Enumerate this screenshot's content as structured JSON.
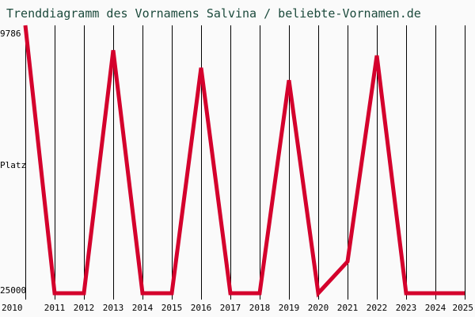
{
  "chart_data": {
    "type": "line",
    "title": "Trenddiagramm des Vornamens Salvina / beliebte-Vornamen.de",
    "ylabel": "Platz",
    "x": [
      "2010",
      "2011",
      "2012",
      "2013",
      "2014",
      "2015",
      "2016",
      "2017",
      "2018",
      "2019",
      "2020",
      "2021",
      "2022",
      "2023",
      "2024",
      "2025"
    ],
    "series": [
      {
        "values": [
          9786,
          25000,
          25000,
          11200,
          25000,
          25000,
          12200,
          25000,
          25000,
          12900,
          25000,
          23200,
          11500,
          25000,
          25000,
          25000
        ]
      }
    ],
    "y_ticks": [
      "9786",
      "Platz",
      "25000"
    ],
    "ylim": [
      9786,
      25000
    ],
    "y_inverted": true,
    "colors": {
      "line": "#d4002c",
      "grid": "#000000",
      "background": "#fafafa",
      "title": "#1c4a3c"
    }
  }
}
